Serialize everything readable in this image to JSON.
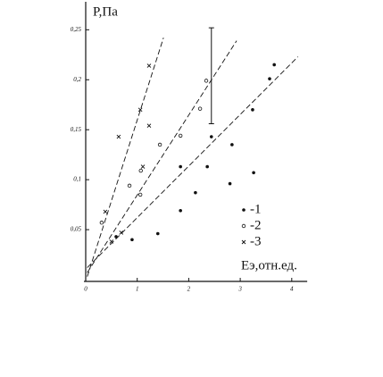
{
  "chart_data": {
    "type": "scatter",
    "y_label": "P,Па",
    "x_label": "Еэ,отн.ед.",
    "xlim": [
      0,
      4.3
    ],
    "ylim": [
      0,
      0.278
    ],
    "xticks": [
      0,
      1,
      2,
      3,
      4
    ],
    "yticks": [
      {
        "value": 0.05,
        "label": "0,05"
      },
      {
        "value": 0.1,
        "label": "0,1"
      },
      {
        "value": 0.15,
        "label": "0,15"
      },
      {
        "value": 0.2,
        "label": "0,2"
      },
      {
        "value": 0.25,
        "label": "0,25"
      }
    ],
    "legend": "lower right",
    "color": "#111111",
    "series": [
      {
        "name": "-1",
        "marker": "dot",
        "x": [
          0.59,
          0.9,
          1.4,
          1.84,
          2.13,
          2.44,
          2.8,
          3.26,
          3.57,
          3.66,
          1.84,
          2.36,
          3.24,
          2.84
        ],
        "values": [
          0.043,
          0.04,
          0.046,
          0.069,
          0.087,
          0.143,
          0.096,
          0.107,
          0.201,
          0.215,
          0.113,
          0.113,
          0.17,
          0.135
        ],
        "fit_x": [
          0.03,
          4.12
        ],
        "fit_y": [
          0.012,
          0.223
        ]
      },
      {
        "name": "-2",
        "marker": "circle",
        "x": [
          0.31,
          0.85,
          1.06,
          1.44,
          1.84,
          2.22,
          2.34,
          1.07
        ],
        "values": [
          0.057,
          0.094,
          0.085,
          0.135,
          0.144,
          0.171,
          0.199,
          0.109
        ],
        "fit_x": [
          0.03,
          2.93
        ],
        "fit_y": [
          0.007,
          0.239
        ],
        "error": {
          "x": 2.44,
          "y": 0.204,
          "err": 0.048
        }
      },
      {
        "name": "-3",
        "marker": "cross",
        "x": [
          0.38,
          0.5,
          0.69,
          1.06,
          1.23,
          1.11,
          0.64,
          1.23
        ],
        "values": [
          0.068,
          0.038,
          0.047,
          0.17,
          0.214,
          0.113,
          0.143,
          0.154
        ],
        "fit_x": [
          0.03,
          1.51
        ],
        "fit_y": [
          0.003,
          0.242
        ]
      }
    ]
  }
}
